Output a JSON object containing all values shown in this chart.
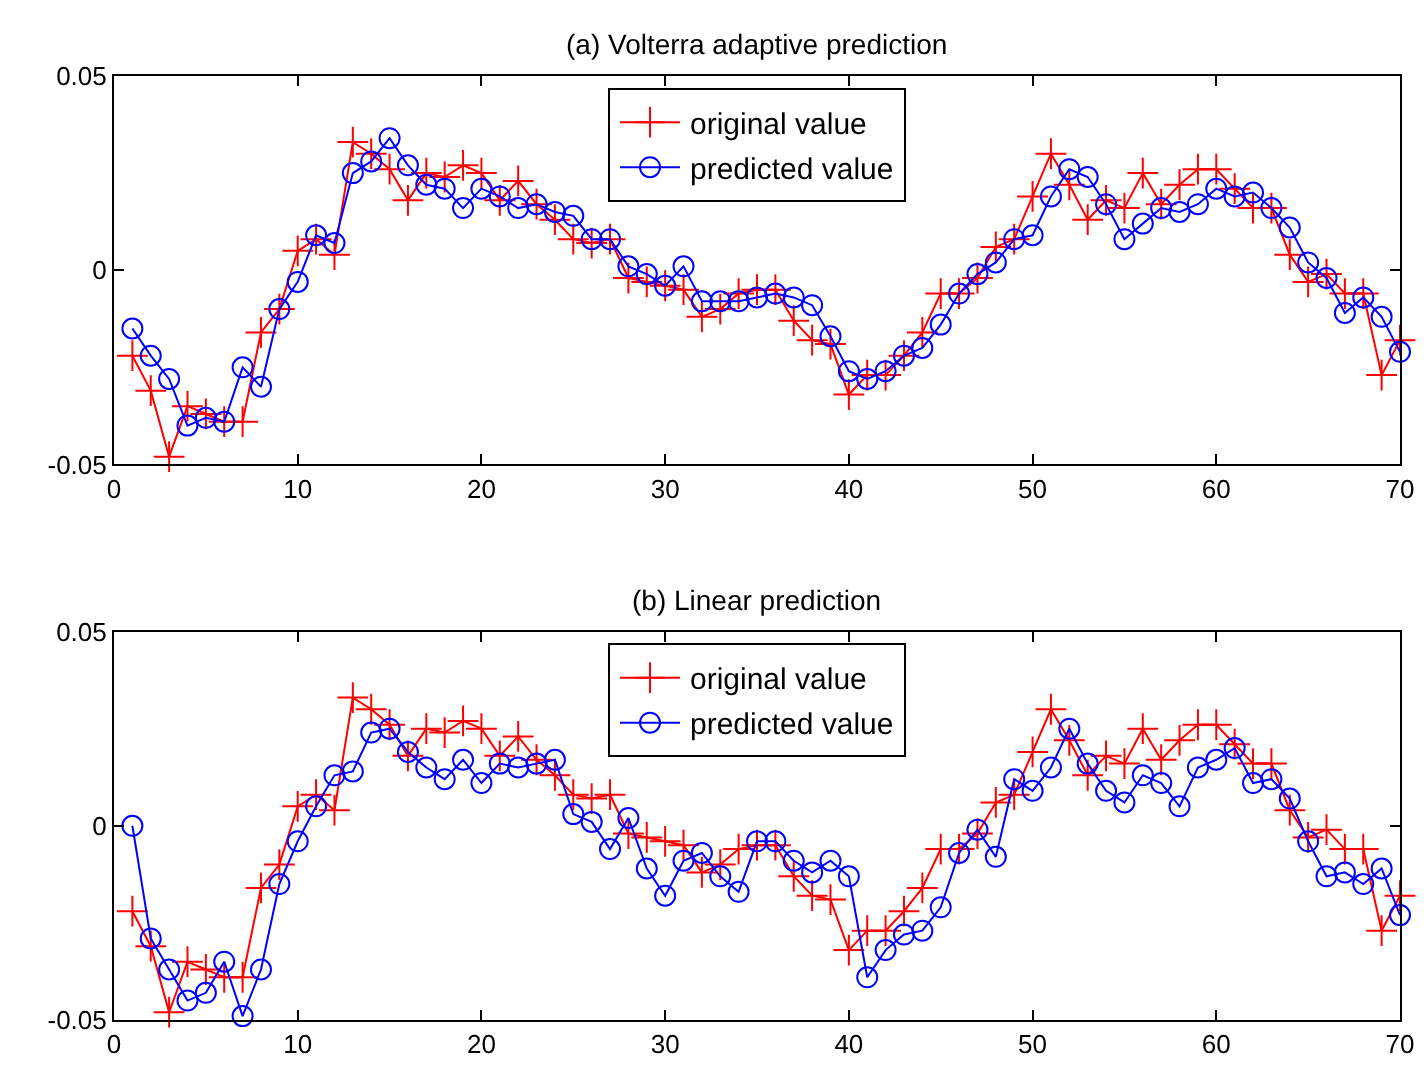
{
  "chart_data": [
    {
      "type": "line",
      "title": "(a) Volterra adaptive prediction",
      "x": [
        1,
        2,
        3,
        4,
        5,
        6,
        7,
        8,
        9,
        10,
        11,
        12,
        13,
        14,
        15,
        16,
        17,
        18,
        19,
        20,
        21,
        22,
        23,
        24,
        25,
        26,
        27,
        28,
        29,
        30,
        31,
        32,
        33,
        34,
        35,
        36,
        37,
        38,
        39,
        40,
        41,
        42,
        43,
        44,
        45,
        46,
        47,
        48,
        49,
        50,
        51,
        52,
        53,
        54,
        55,
        56,
        57,
        58,
        59,
        60,
        61,
        62,
        63,
        64,
        65,
        66,
        67,
        68,
        69,
        70
      ],
      "series": [
        {
          "name": "original value",
          "color": "#ff0000",
          "marker": "cross",
          "values": [
            -0.022,
            -0.031,
            -0.048,
            -0.035,
            -0.037,
            -0.039,
            -0.039,
            -0.016,
            -0.01,
            0.005,
            0.008,
            0.004,
            0.033,
            0.03,
            0.026,
            0.018,
            0.025,
            0.024,
            0.027,
            0.025,
            0.018,
            0.023,
            0.017,
            0.013,
            0.008,
            0.007,
            0.008,
            -0.002,
            -0.003,
            -0.004,
            -0.005,
            -0.012,
            -0.01,
            -0.006,
            -0.005,
            -0.005,
            -0.013,
            -0.018,
            -0.019,
            -0.032,
            -0.027,
            -0.027,
            -0.022,
            -0.016,
            -0.006,
            -0.006,
            -0.002,
            0.006,
            0.008,
            0.019,
            0.03,
            0.022,
            0.013,
            0.018,
            0.016,
            0.025,
            0.017,
            0.022,
            0.026,
            0.026,
            0.021,
            0.016,
            0.016,
            0.004,
            -0.003,
            -0.001,
            -0.006,
            -0.006,
            -0.027,
            -0.018
          ]
        },
        {
          "name": "predicted value",
          "color": "#0000ff",
          "marker": "circle",
          "values": [
            -0.015,
            -0.022,
            -0.028,
            -0.04,
            -0.038,
            -0.039,
            -0.025,
            -0.03,
            -0.01,
            -0.003,
            0.009,
            0.007,
            0.025,
            0.028,
            0.034,
            0.027,
            0.022,
            0.021,
            0.016,
            0.021,
            0.019,
            0.016,
            0.017,
            0.015,
            0.014,
            0.008,
            0.008,
            0.001,
            -0.001,
            -0.004,
            0.001,
            -0.008,
            -0.008,
            -0.008,
            -0.007,
            -0.006,
            -0.007,
            -0.009,
            -0.017,
            -0.026,
            -0.028,
            -0.026,
            -0.022,
            -0.02,
            -0.014,
            -0.006,
            -0.001,
            0.002,
            0.008,
            0.009,
            0.019,
            0.026,
            0.024,
            0.017,
            0.008,
            0.012,
            0.016,
            0.015,
            0.017,
            0.021,
            0.019,
            0.02,
            0.016,
            0.011,
            0.002,
            -0.002,
            -0.011,
            -0.007,
            -0.012,
            -0.021
          ]
        }
      ],
      "xlim": [
        0,
        70
      ],
      "xticks": [
        0,
        10,
        20,
        30,
        40,
        50,
        60,
        70
      ],
      "ylim": [
        -0.05,
        0.05
      ],
      "yticks": [
        -0.05,
        0,
        0.05
      ],
      "legend": "top",
      "grid": false,
      "line_style": "solid"
    },
    {
      "type": "line",
      "title": "(b) Linear prediction",
      "x": [
        1,
        2,
        3,
        4,
        5,
        6,
        7,
        8,
        9,
        10,
        11,
        12,
        13,
        14,
        15,
        16,
        17,
        18,
        19,
        20,
        21,
        22,
        23,
        24,
        25,
        26,
        27,
        28,
        29,
        30,
        31,
        32,
        33,
        34,
        35,
        36,
        37,
        38,
        39,
        40,
        41,
        42,
        43,
        44,
        45,
        46,
        47,
        48,
        49,
        50,
        51,
        52,
        53,
        54,
        55,
        56,
        57,
        58,
        59,
        60,
        61,
        62,
        63,
        64,
        65,
        66,
        67,
        68,
        69,
        70
      ],
      "series": [
        {
          "name": "original value",
          "color": "#ff0000",
          "marker": "cross",
          "values": [
            -0.022,
            -0.031,
            -0.048,
            -0.035,
            -0.037,
            -0.039,
            -0.039,
            -0.016,
            -0.01,
            0.005,
            0.008,
            0.004,
            0.033,
            0.03,
            0.026,
            0.018,
            0.025,
            0.024,
            0.027,
            0.025,
            0.018,
            0.023,
            0.017,
            0.013,
            0.008,
            0.007,
            0.008,
            -0.002,
            -0.003,
            -0.004,
            -0.005,
            -0.012,
            -0.01,
            -0.006,
            -0.005,
            -0.005,
            -0.013,
            -0.018,
            -0.019,
            -0.032,
            -0.027,
            -0.027,
            -0.022,
            -0.016,
            -0.006,
            -0.006,
            -0.002,
            0.006,
            0.008,
            0.019,
            0.03,
            0.022,
            0.013,
            0.018,
            0.016,
            0.025,
            0.017,
            0.022,
            0.026,
            0.026,
            0.021,
            0.016,
            0.016,
            0.004,
            -0.003,
            -0.001,
            -0.006,
            -0.006,
            -0.027,
            -0.018
          ]
        },
        {
          "name": "predicted value",
          "color": "#0000ff",
          "marker": "circle",
          "values": [
            0.0,
            -0.029,
            -0.037,
            -0.045,
            -0.043,
            -0.035,
            -0.049,
            -0.037,
            -0.015,
            -0.004,
            0.005,
            0.013,
            0.014,
            0.024,
            0.025,
            0.019,
            0.015,
            0.012,
            0.017,
            0.011,
            0.016,
            0.015,
            0.016,
            0.017,
            0.003,
            0.001,
            -0.006,
            0.002,
            -0.011,
            -0.018,
            -0.009,
            -0.007,
            -0.013,
            -0.017,
            -0.004,
            -0.004,
            -0.009,
            -0.012,
            -0.009,
            -0.013,
            -0.039,
            -0.032,
            -0.028,
            -0.027,
            -0.021,
            -0.007,
            -0.001,
            -0.008,
            0.012,
            0.009,
            0.015,
            0.025,
            0.016,
            0.009,
            0.006,
            0.013,
            0.011,
            0.005,
            0.015,
            0.017,
            0.02,
            0.011,
            0.012,
            0.007,
            -0.004,
            -0.013,
            -0.012,
            -0.015,
            -0.011,
            -0.023
          ]
        }
      ],
      "xlim": [
        0,
        70
      ],
      "xticks": [
        0,
        10,
        20,
        30,
        40,
        50,
        60,
        70
      ],
      "ylim": [
        -0.05,
        0.05
      ],
      "yticks": [
        -0.05,
        0,
        0.05
      ],
      "legend": "top",
      "grid": false,
      "line_style": "solid"
    }
  ]
}
